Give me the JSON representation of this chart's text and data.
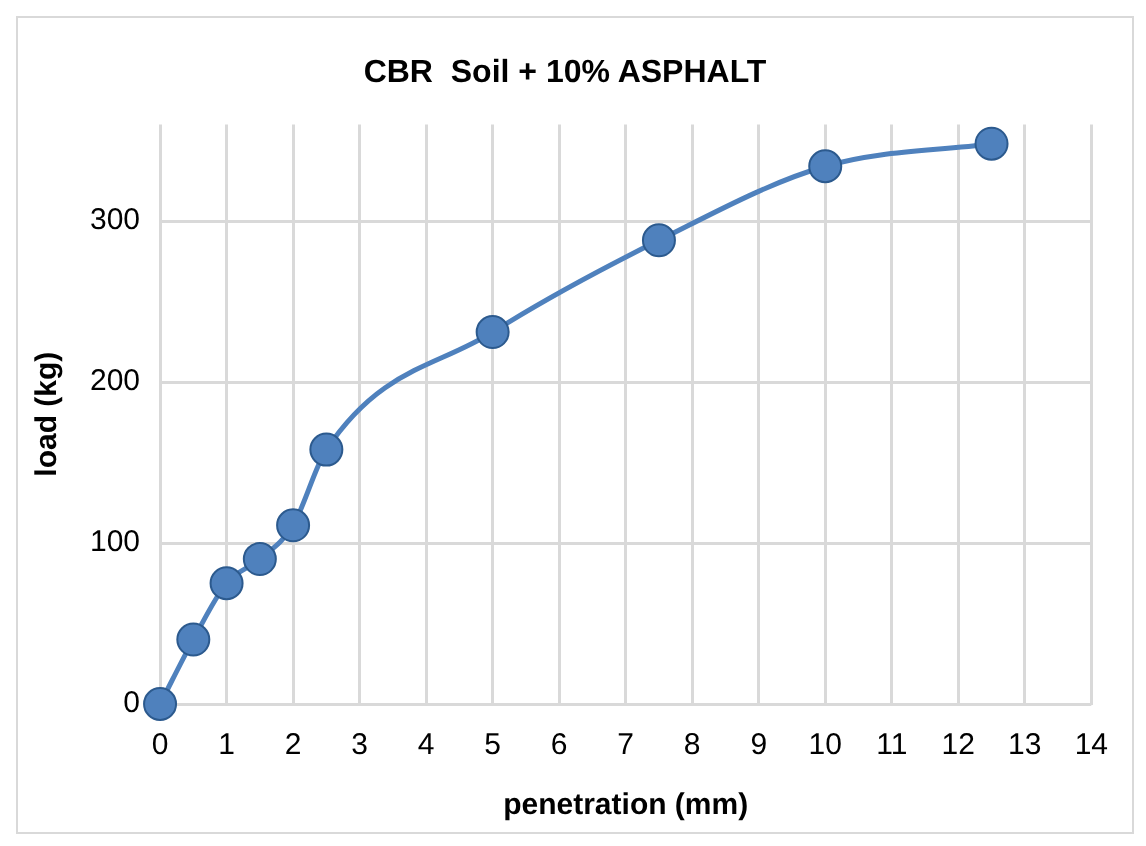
{
  "chart_data": {
    "type": "line",
    "title": "CBR  Soil + 10% ASPHALT",
    "xlabel": "penetration (mm)",
    "ylabel": "load (kg)",
    "x": [
      0,
      0.5,
      1,
      1.5,
      2,
      2.5,
      5,
      7.5,
      10,
      12.5
    ],
    "series": [
      {
        "color": "#4f81bd",
        "values": [
          0,
          40,
          75,
          90,
          111,
          158,
          231,
          288,
          334,
          348
        ]
      }
    ],
    "xlim": [
      0,
      14
    ],
    "xticks": [
      0,
      1,
      2,
      3,
      4,
      5,
      6,
      7,
      8,
      9,
      10,
      11,
      12,
      13,
      14
    ],
    "ylim": [
      0,
      360
    ],
    "yticks": [
      0,
      100,
      200,
      300
    ],
    "grid": true,
    "legend": false,
    "marker": "circle",
    "line_style": "solid"
  }
}
